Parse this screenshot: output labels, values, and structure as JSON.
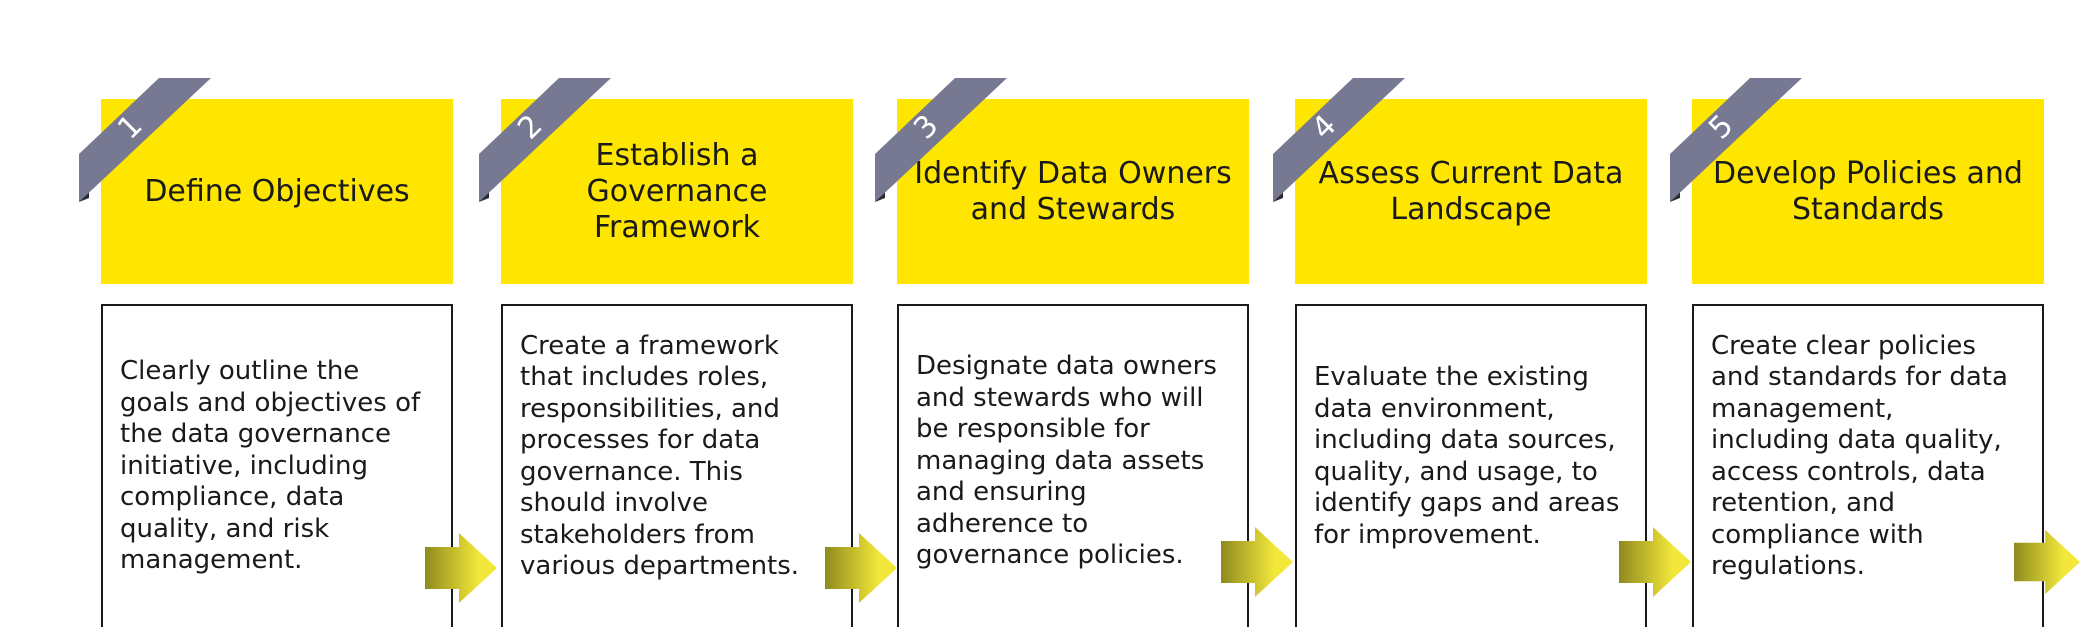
{
  "steps": [
    {
      "number": "1",
      "title": "Define Objectives",
      "description": "Clearly outline the goals and objectives of the data governance initiative, including compliance, data quality, and risk management."
    },
    {
      "number": "2",
      "title": "Establish a Governance Framework",
      "description": "Create a framework that includes roles, responsibilities, and processes for data governance. This should involve stakeholders from various departments."
    },
    {
      "number": "3",
      "title": "Identify Data Owners and Stewards",
      "description": "Designate data owners and stewards who will be responsible for managing data assets and ensuring adherence to governance policies."
    },
    {
      "number": "4",
      "title": "Assess Current Data Landscape",
      "description": "Evaluate the existing data environment, including data sources, quality, and usage, to identify gaps and areas for improvement."
    },
    {
      "number": "5",
      "title": "Develop Policies and Standards",
      "description": "Create clear policies and standards for data management, including data quality, access controls, data retention, and compliance with regulations."
    }
  ],
  "colors": {
    "header": "#ffe600",
    "badge": "#777891",
    "badge_shadow": "#2b2b33",
    "arrow_light": "#f3e83a",
    "arrow_dark": "#8f8a1f",
    "text": "#1a1a1a"
  }
}
